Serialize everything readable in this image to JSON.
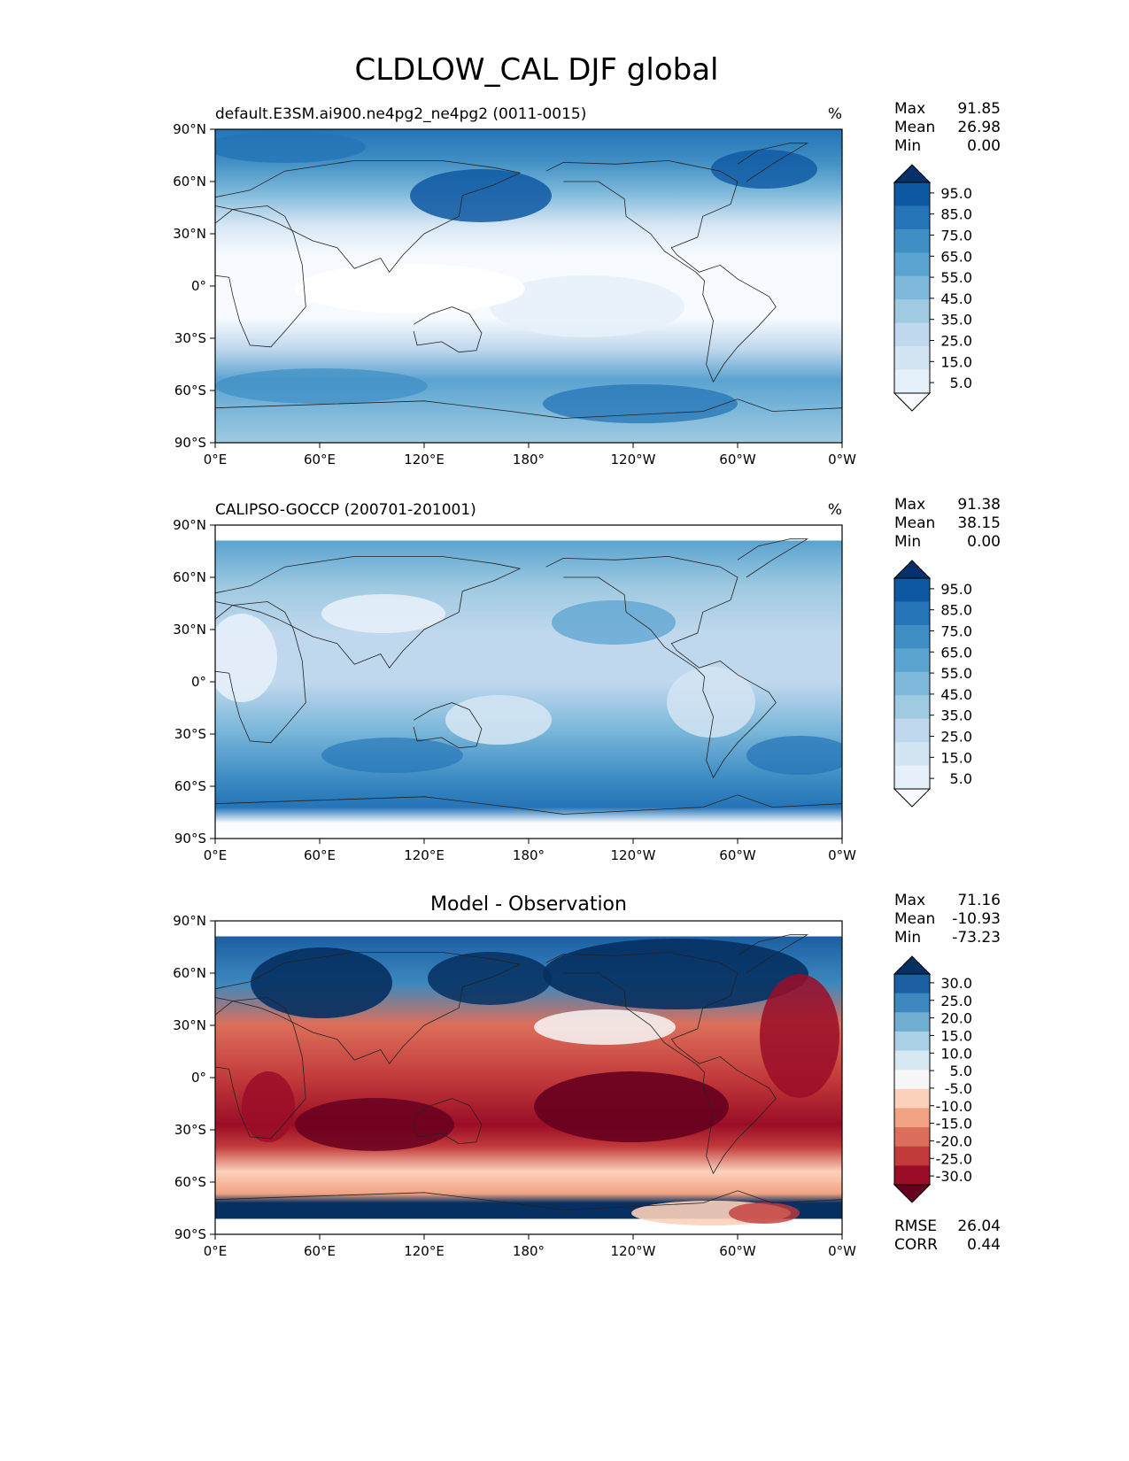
{
  "title": "CLDLOW_CAL DJF global",
  "colors": {
    "blues": [
      "#f7fbff",
      "#e6f0f9",
      "#d3e4f3",
      "#c0d8ed",
      "#9fcae1",
      "#7db8da",
      "#5ba3d0",
      "#3f8ec4",
      "#2474b7",
      "#0e58a2",
      "#08306b"
    ],
    "diff": [
      "#67001f",
      "#9b0d27",
      "#c23b3b",
      "#dc6f5b",
      "#f1a383",
      "#fcd1bb",
      "#f7f7f7",
      "#d6e8f2",
      "#a9d0e5",
      "#6fadd1",
      "#3d88be",
      "#1c5fa3",
      "#053061"
    ],
    "land_line": "#222222"
  },
  "axes": {
    "yticks": [
      "90°N",
      "60°N",
      "30°N",
      "0°",
      "30°S",
      "60°S",
      "90°S"
    ],
    "xticks": [
      "0°E",
      "60°E",
      "120°E",
      "180°",
      "120°W",
      "60°W",
      "0°W"
    ]
  },
  "panels": [
    {
      "id": "test",
      "left_title": "default.E3SM.ai900.ne4pg2_ne4pg2 (0011-0015)",
      "center_title": "",
      "units": "%",
      "stats": [
        {
          "label": "Max",
          "value": "91.85"
        },
        {
          "label": "Mean",
          "value": "26.98"
        },
        {
          "label": "Min",
          "value": "0.00"
        }
      ],
      "colorbar_labels": [
        "95.0",
        "85.0",
        "75.0",
        "65.0",
        "55.0",
        "45.0",
        "35.0",
        "25.0",
        "15.0",
        "5.0"
      ],
      "extra_stats": []
    },
    {
      "id": "reference",
      "left_title": "CALIPSO-GOCCP (200701-201001)",
      "center_title": "",
      "units": "%",
      "stats": [
        {
          "label": "Max",
          "value": "91.38"
        },
        {
          "label": "Mean",
          "value": "38.15"
        },
        {
          "label": "Min",
          "value": "0.00"
        }
      ],
      "colorbar_labels": [
        "95.0",
        "85.0",
        "75.0",
        "65.0",
        "55.0",
        "45.0",
        "35.0",
        "25.0",
        "15.0",
        "5.0"
      ],
      "extra_stats": []
    },
    {
      "id": "diff",
      "left_title": "",
      "center_title": "Model - Observation",
      "units": "",
      "stats": [
        {
          "label": "Max",
          "value": "71.16"
        },
        {
          "label": "Mean",
          "value": "-10.93"
        },
        {
          "label": "Min",
          "value": "-73.23"
        }
      ],
      "colorbar_labels": [
        "30.0",
        "25.0",
        "20.0",
        "15.0",
        "10.0",
        "5.0",
        "-5.0",
        "-10.0",
        "-15.0",
        "-20.0",
        "-25.0",
        "-30.0"
      ],
      "extra_stats": [
        {
          "label": "RMSE",
          "value": "26.04"
        },
        {
          "label": "CORR",
          "value": "0.44"
        }
      ]
    }
  ]
}
